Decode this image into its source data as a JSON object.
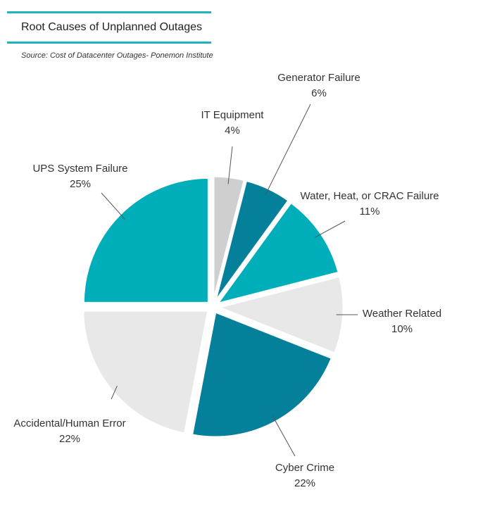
{
  "chart_data": {
    "type": "pie",
    "title": "Root Causes of Unplanned Outages",
    "source": "Source: Cost of Datacenter Outages- Ponemon Institute",
    "slices": [
      {
        "label": "IT Equipment",
        "value": 4,
        "display": "4%",
        "color": "#cfcfcf"
      },
      {
        "label": "Generator Failure",
        "value": 6,
        "display": "6%",
        "color": "#04809a"
      },
      {
        "label": "Water, Heat, or CRAC Failure",
        "value": 11,
        "display": "11%",
        "color": "#00aeb9"
      },
      {
        "label": "Weather Related",
        "value": 10,
        "display": "10%",
        "color": "#e8e8e8"
      },
      {
        "label": "Cyber Crime",
        "value": 22,
        "display": "22%",
        "color": "#04809a"
      },
      {
        "label": "Accidental/Human Error",
        "value": 22,
        "display": "22%",
        "color": "#e8e8e8"
      },
      {
        "label": "UPS System Failure",
        "value": 25,
        "display": "25%",
        "color": "#00aeb9"
      }
    ]
  }
}
